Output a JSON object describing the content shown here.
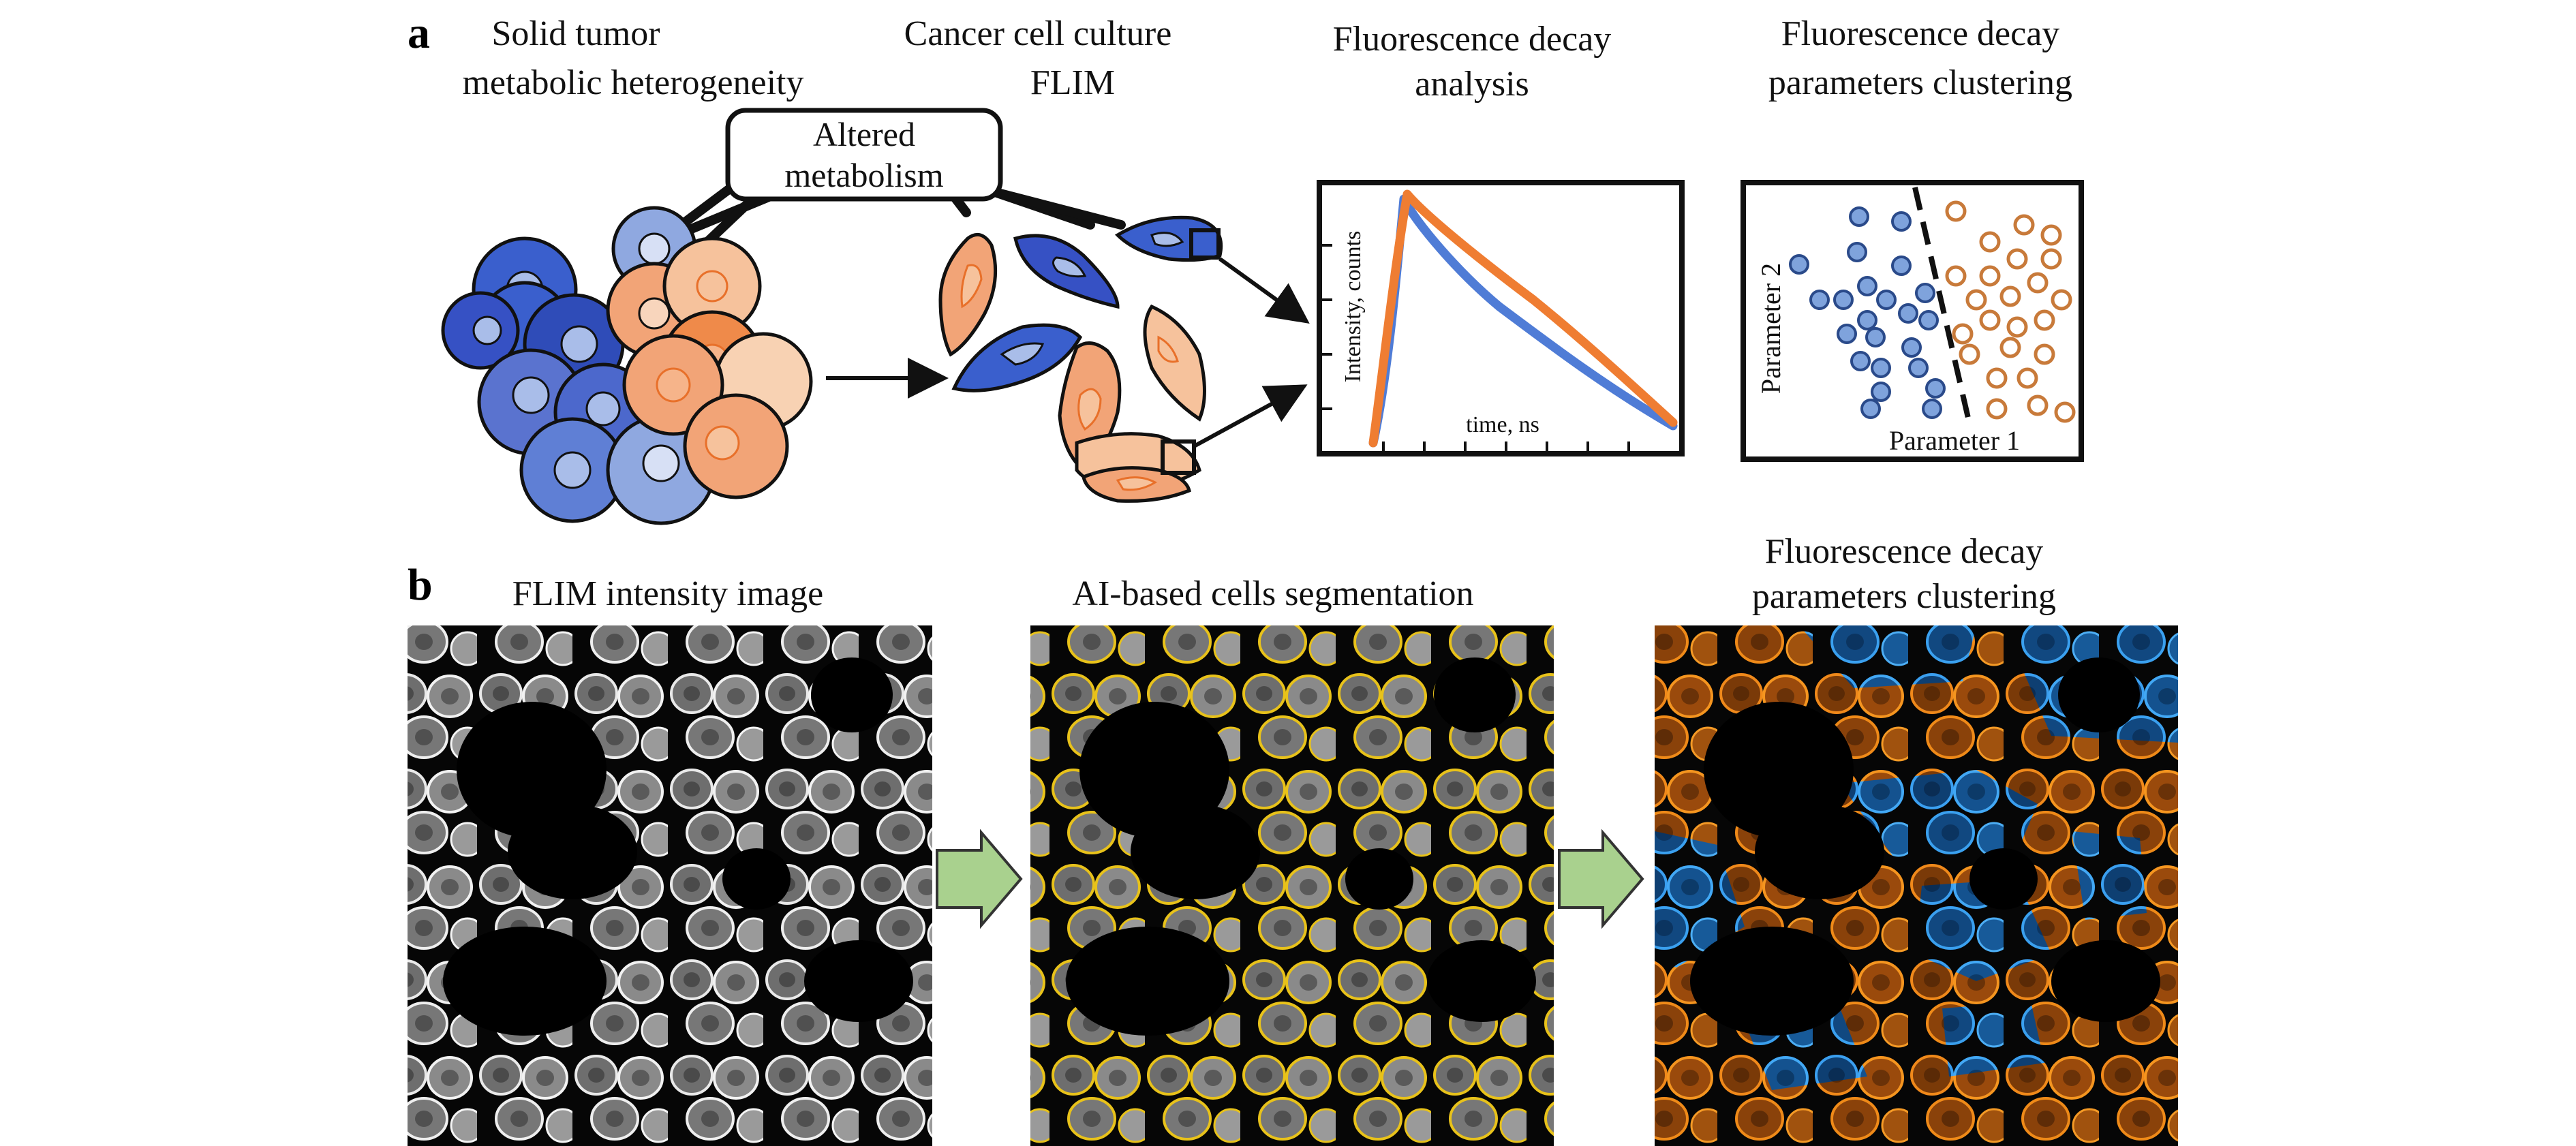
{
  "panel_a": {
    "label": "a",
    "tumor_title": [
      "Solid tumor",
      "metabolic heterogeneity"
    ],
    "culture_title": [
      "Cancer cell culture",
      "FLIM"
    ],
    "decay_title": [
      "Fluorescence decay",
      "analysis"
    ],
    "cluster_title": [
      "Fluorescence decay",
      "parameters clustering"
    ],
    "altered_box": [
      "Altered",
      "metabolism"
    ],
    "decay_plot": {
      "ylabel": "Intensity, counts",
      "xlabel": "time, ns"
    },
    "cluster_plot": {
      "ylabel": "Parameter 2",
      "xlabel": "Parameter 1"
    }
  },
  "panel_b": {
    "label": "b",
    "image1_title": "FLIM intensity image",
    "image2_title": "AI-based cells segmentation",
    "image3_title": [
      "Fluorescence decay",
      "parameters clustering"
    ]
  },
  "colors": {
    "blue_dark": "#3a5fcd",
    "blue_light": "#8fa8e0",
    "orange_dark": "#ef8a4a",
    "orange_light": "#f6c29c",
    "decay_orange": "#ef7d32",
    "decay_blue": "#4f7cd6",
    "cluster_blue": "#7fa3dc",
    "cluster_orange": "#c87a3a",
    "segment_yellow": "#e8c21a",
    "flim_blue": "#2f8ee0",
    "flim_orange": "#e07a14",
    "arrow_green": "#a9d18e"
  }
}
